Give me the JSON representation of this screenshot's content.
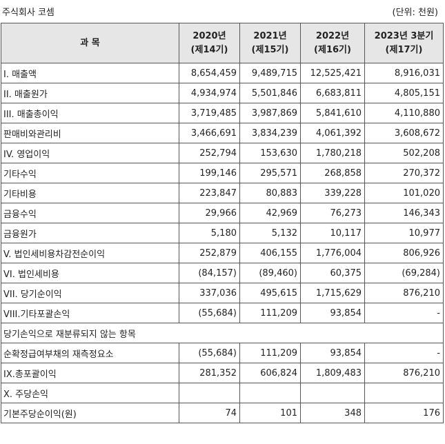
{
  "header": {
    "company": "주식회사 코셈",
    "unit": "(단위: 천원)"
  },
  "table": {
    "subject_header": "과  목",
    "columns": [
      {
        "year": "2020년",
        "period": "(제14기)"
      },
      {
        "year": "2021년",
        "period": "(제15기)"
      },
      {
        "year": "2022년",
        "period": "(제16기)"
      },
      {
        "year": "2023년 3분기",
        "period": "(제17기)"
      }
    ],
    "rows": [
      {
        "label": "I. 매출액",
        "values": [
          "8,654,459",
          "9,489,715",
          "12,525,421",
          "8,916,031"
        ]
      },
      {
        "label": "II. 매출원가",
        "values": [
          "4,934,974",
          "5,501,846",
          "6,683,811",
          "4,805,151"
        ]
      },
      {
        "label": "III. 매출총이익",
        "values": [
          "3,719,485",
          "3,987,869",
          "5,841,610",
          "4,110,880"
        ]
      },
      {
        "label": "판매비와관리비",
        "values": [
          "3,466,691",
          "3,834,239",
          "4,061,392",
          "3,608,672"
        ]
      },
      {
        "label": "IV. 영업이익",
        "values": [
          "252,794",
          "153,630",
          "1,780,218",
          "502,208"
        ]
      },
      {
        "label": "기타수익",
        "values": [
          "199,146",
          "295,571",
          "268,858",
          "270,372"
        ]
      },
      {
        "label": "기타비용",
        "values": [
          "223,847",
          "80,883",
          "339,228",
          "101,020"
        ]
      },
      {
        "label": "금융수익",
        "values": [
          "29,966",
          "42,969",
          "76,273",
          "146,343"
        ]
      },
      {
        "label": "금융원가",
        "values": [
          "5,180",
          "5,132",
          "10,117",
          "10,977"
        ]
      },
      {
        "label": "V. 법인세비용차감전순이익",
        "values": [
          "252,879",
          "406,155",
          "1,776,004",
          "806,926"
        ]
      },
      {
        "label": "VI. 법인세비용",
        "values": [
          "(84,157)",
          "(89,460)",
          "60,375",
          "(69,284)"
        ]
      },
      {
        "label": "VII. 당기순이익",
        "values": [
          "337,036",
          "495,615",
          "1,715,629",
          "876,210"
        ]
      },
      {
        "label": "VIII.기타포괄손익",
        "values": [
          "(55,684)",
          "111,209",
          "93,854",
          "-"
        ]
      },
      {
        "label": "당기손익으로 재분류되지 않는 항목",
        "span": true
      },
      {
        "label": "순확정급여부채의 재측정요소",
        "values": [
          "(55,684)",
          "111,209",
          "93,854",
          "-"
        ]
      },
      {
        "label": "IX.총포괄이익",
        "values": [
          "281,352",
          "606,824",
          "1,809,483",
          "876,210"
        ]
      },
      {
        "label": "X. 주당손익",
        "values": [
          "",
          "",
          "",
          ""
        ]
      },
      {
        "label": "기본주당순이익(원)",
        "values": [
          "74",
          "101",
          "348",
          "176"
        ]
      }
    ]
  }
}
